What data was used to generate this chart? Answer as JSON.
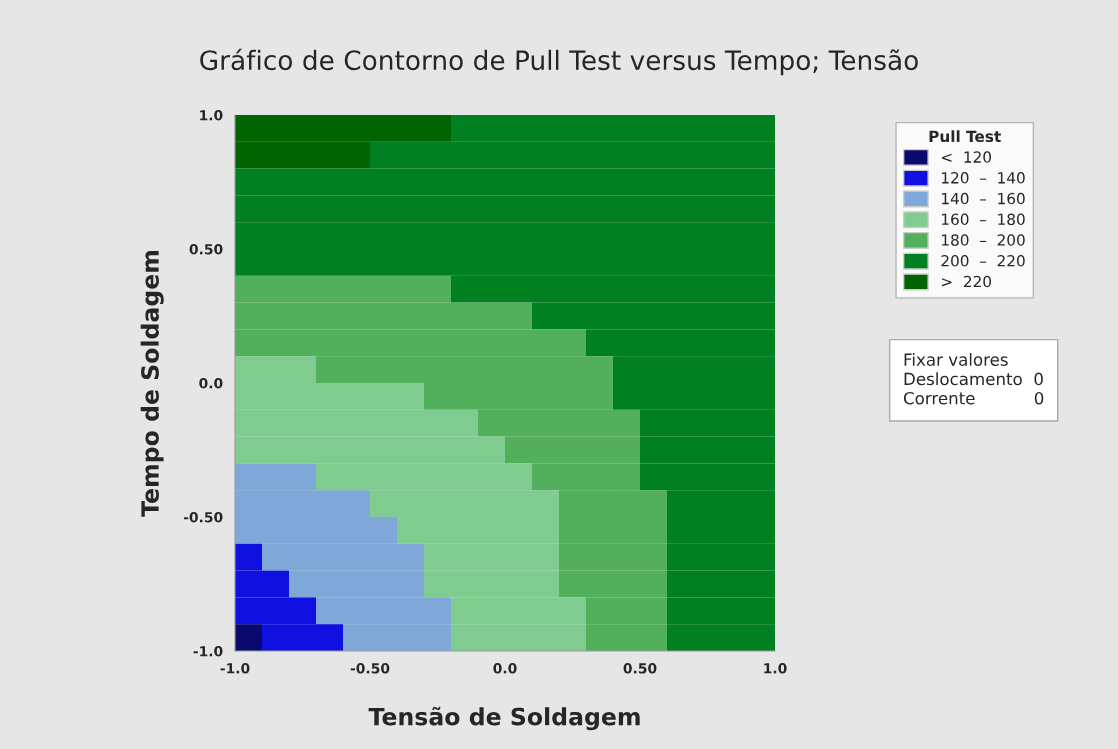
{
  "chart_data": {
    "type": "heatmap",
    "title": "Gráfico de Contorno de Pull Test versus Tempo; Tensão",
    "xlabel": "Tensão de Soldagem",
    "ylabel": "Tempo de Soldagem",
    "legend_title": "Pull Test",
    "xlim": [
      -1,
      1
    ],
    "ylim": [
      -1,
      1
    ],
    "xticks": [
      {
        "value": -1,
        "label": "-1.0"
      },
      {
        "value": -0.5,
        "label": "-0.50"
      },
      {
        "value": 0,
        "label": "0.0"
      },
      {
        "value": 0.5,
        "label": "0.50"
      },
      {
        "value": 1,
        "label": "1.0"
      }
    ],
    "yticks": [
      {
        "value": -1,
        "label": "-1.0"
      },
      {
        "value": -0.5,
        "label": "-0.50"
      },
      {
        "value": 0,
        "label": "0.0"
      },
      {
        "value": 0.5,
        "label": "0.50"
      },
      {
        "value": 1,
        "label": "1.0"
      }
    ],
    "clim": [
      100,
      240
    ],
    "cticks": [
      {
        "value": 110,
        "label": "<  120"
      },
      {
        "value": 130,
        "label": "120  –  140"
      },
      {
        "value": 150,
        "label": "140  –  160"
      },
      {
        "value": 170,
        "label": "160  –  180"
      },
      {
        "value": 190,
        "label": "180  –  200"
      },
      {
        "value": 210,
        "label": "200  –  220"
      },
      {
        "value": 230,
        "label": ">  220"
      }
    ],
    "colors": [
      "#0a0a6e",
      "#1010e0",
      "#7fa8d8",
      "#80cc90",
      "#52b05c",
      "#008020",
      "#006400"
    ],
    "cells": [
      [
        230,
        230,
        230,
        230,
        230,
        230,
        230,
        230,
        210,
        210,
        210,
        210,
        210,
        210,
        210,
        210,
        210,
        210,
        210,
        210
      ],
      [
        230,
        230,
        230,
        230,
        230,
        210,
        210,
        210,
        210,
        210,
        210,
        210,
        210,
        210,
        210,
        210,
        210,
        210,
        210,
        210
      ],
      [
        210,
        210,
        210,
        210,
        210,
        210,
        210,
        210,
        210,
        210,
        210,
        210,
        210,
        210,
        210,
        210,
        210,
        210,
        210,
        210
      ],
      [
        210,
        210,
        210,
        210,
        210,
        210,
        210,
        210,
        210,
        210,
        210,
        210,
        210,
        210,
        210,
        210,
        210,
        210,
        210,
        210
      ],
      [
        210,
        210,
        210,
        210,
        210,
        210,
        210,
        210,
        210,
        210,
        210,
        210,
        210,
        210,
        210,
        210,
        210,
        210,
        210,
        210
      ],
      [
        210,
        210,
        210,
        210,
        210,
        210,
        210,
        210,
        210,
        210,
        210,
        210,
        210,
        210,
        210,
        210,
        210,
        210,
        210,
        210
      ],
      [
        190,
        190,
        190,
        190,
        190,
        190,
        190,
        190,
        210,
        210,
        210,
        210,
        210,
        210,
        210,
        210,
        210,
        210,
        210,
        210
      ],
      [
        190,
        190,
        190,
        190,
        190,
        190,
        190,
        190,
        190,
        190,
        190,
        210,
        210,
        210,
        210,
        210,
        210,
        210,
        210,
        210
      ],
      [
        190,
        190,
        190,
        190,
        190,
        190,
        190,
        190,
        190,
        190,
        190,
        190,
        190,
        210,
        210,
        210,
        210,
        210,
        210,
        210
      ],
      [
        170,
        170,
        170,
        190,
        190,
        190,
        190,
        190,
        190,
        190,
        190,
        190,
        190,
        190,
        210,
        210,
        210,
        210,
        210,
        210
      ],
      [
        170,
        170,
        170,
        170,
        170,
        170,
        170,
        190,
        190,
        190,
        190,
        190,
        190,
        190,
        210,
        210,
        210,
        210,
        210,
        210
      ],
      [
        170,
        170,
        170,
        170,
        170,
        170,
        170,
        170,
        170,
        190,
        190,
        190,
        190,
        190,
        190,
        210,
        210,
        210,
        210,
        210
      ],
      [
        170,
        170,
        170,
        170,
        170,
        170,
        170,
        170,
        170,
        170,
        190,
        190,
        190,
        190,
        190,
        210,
        210,
        210,
        210,
        210
      ],
      [
        150,
        150,
        150,
        170,
        170,
        170,
        170,
        170,
        170,
        170,
        170,
        190,
        190,
        190,
        190,
        210,
        210,
        210,
        210,
        210
      ],
      [
        150,
        150,
        150,
        150,
        150,
        170,
        170,
        170,
        170,
        170,
        170,
        170,
        190,
        190,
        190,
        190,
        210,
        210,
        210,
        210
      ],
      [
        150,
        150,
        150,
        150,
        150,
        150,
        170,
        170,
        170,
        170,
        170,
        170,
        190,
        190,
        190,
        190,
        210,
        210,
        210,
        210
      ],
      [
        130,
        150,
        150,
        150,
        150,
        150,
        150,
        170,
        170,
        170,
        170,
        170,
        190,
        190,
        190,
        190,
        210,
        210,
        210,
        210
      ],
      [
        130,
        130,
        150,
        150,
        150,
        150,
        150,
        170,
        170,
        170,
        170,
        170,
        190,
        190,
        190,
        190,
        210,
        210,
        210,
        210
      ],
      [
        130,
        130,
        130,
        150,
        150,
        150,
        150,
        150,
        170,
        170,
        170,
        170,
        170,
        190,
        190,
        190,
        210,
        210,
        210,
        210
      ],
      [
        110,
        130,
        130,
        130,
        150,
        150,
        150,
        150,
        170,
        170,
        170,
        170,
        170,
        190,
        190,
        190,
        210,
        210,
        210,
        210
      ]
    ],
    "annotations": [
      "Fixar valores",
      "Deslocamento  0",
      "Corrente           0"
    ]
  }
}
